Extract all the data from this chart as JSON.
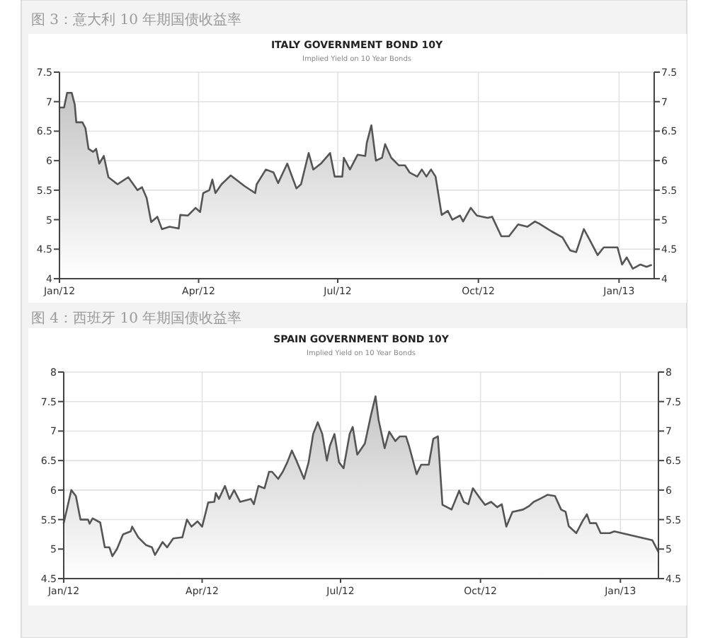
{
  "chart_data": [
    {
      "type": "area",
      "title": "ITALY GOVERNMENT BOND 10Y",
      "subtitle": "Implied Yield on 10 Year Bonds",
      "annotations": [
        "图 3：意大利 10 年期国债收益率"
      ],
      "grid": true,
      "marker": "none",
      "line_style": "solid",
      "xlim": [
        "2012-01-01",
        "2013-01-24"
      ],
      "xticks": [
        {
          "value": "2012-01-01",
          "label": "Jan/12"
        },
        {
          "value": "2012-04-01",
          "label": "Apr/12"
        },
        {
          "value": "2012-07-01",
          "label": "Jul/12"
        },
        {
          "value": "2012-10-01",
          "label": "Oct/12"
        },
        {
          "value": "2013-01-01",
          "label": "Jan/13"
        }
      ],
      "ylim": [
        4,
        7.5
      ],
      "yticks": [
        4,
        4.5,
        5,
        5.5,
        6,
        6.5,
        7,
        7.5
      ],
      "y2lim": [
        4,
        7.5
      ],
      "y2ticks": [
        4,
        4.5,
        5,
        5.5,
        6,
        6.5,
        7,
        7.5
      ],
      "series": [
        {
          "color": "#555555",
          "x": [
            "2012-01-01",
            "2012-01-04",
            "2012-01-06",
            "2012-01-09",
            "2012-01-11",
            "2012-01-12",
            "2012-01-16",
            "2012-01-18",
            "2012-01-20",
            "2012-01-23",
            "2012-01-25",
            "2012-01-27",
            "2012-01-30",
            "2012-02-02",
            "2012-02-08",
            "2012-02-15",
            "2012-02-21",
            "2012-02-24",
            "2012-02-27",
            "2012-03-01",
            "2012-03-05",
            "2012-03-08",
            "2012-03-13",
            "2012-03-19",
            "2012-03-20",
            "2012-03-25",
            "2012-03-30",
            "2012-04-02",
            "2012-04-04",
            "2012-04-08",
            "2012-04-10",
            "2012-04-12",
            "2012-04-16",
            "2012-04-22",
            "2012-05-01",
            "2012-05-08",
            "2012-05-09",
            "2012-05-15",
            "2012-05-20",
            "2012-05-23",
            "2012-05-29",
            "2012-06-04",
            "2012-06-07",
            "2012-06-12",
            "2012-06-15",
            "2012-06-20",
            "2012-06-26",
            "2012-06-29",
            "2012-07-04",
            "2012-07-05",
            "2012-07-09",
            "2012-07-14",
            "2012-07-19",
            "2012-07-20",
            "2012-07-23",
            "2012-07-26",
            "2012-07-30",
            "2012-08-01",
            "2012-08-05",
            "2012-08-10",
            "2012-08-14",
            "2012-08-17",
            "2012-08-22",
            "2012-08-25",
            "2012-08-28",
            "2012-08-31",
            "2012-09-03",
            "2012-09-07",
            "2012-09-11",
            "2012-09-14",
            "2012-09-19",
            "2012-09-21",
            "2012-09-26",
            "2012-09-30",
            "2012-10-07",
            "2012-10-10",
            "2012-10-16",
            "2012-10-21",
            "2012-10-27",
            "2012-11-02",
            "2012-11-07",
            "2012-11-10",
            "2012-11-18",
            "2012-11-25",
            "2012-11-30",
            "2012-12-04",
            "2012-12-09",
            "2012-12-13",
            "2012-12-18",
            "2012-12-22",
            "2012-12-31",
            "2013-01-03",
            "2013-01-06",
            "2013-01-10",
            "2013-01-15",
            "2013-01-19",
            "2013-01-22"
          ],
          "values": [
            6.9,
            6.9,
            7.15,
            7.15,
            6.95,
            6.65,
            6.65,
            6.55,
            6.2,
            6.15,
            6.2,
            5.95,
            6.08,
            5.72,
            5.6,
            5.72,
            5.5,
            5.55,
            5.37,
            4.96,
            5.05,
            4.84,
            4.88,
            4.85,
            5.08,
            5.07,
            5.2,
            5.13,
            5.45,
            5.5,
            5.68,
            5.45,
            5.6,
            5.75,
            5.57,
            5.45,
            5.6,
            5.85,
            5.8,
            5.62,
            5.95,
            5.53,
            5.6,
            6.13,
            5.85,
            5.95,
            6.13,
            5.73,
            5.73,
            6.05,
            5.85,
            6.1,
            6.08,
            6.3,
            6.6,
            6.0,
            6.05,
            6.28,
            6.05,
            5.92,
            5.92,
            5.8,
            5.73,
            5.85,
            5.73,
            5.85,
            5.73,
            5.08,
            5.15,
            5.0,
            5.07,
            4.97,
            5.2,
            5.07,
            5.03,
            5.05,
            4.72,
            4.72,
            4.92,
            4.88,
            4.97,
            4.93,
            4.8,
            4.7,
            4.48,
            4.45,
            4.84,
            4.65,
            4.4,
            4.53,
            4.53,
            4.24,
            4.36,
            4.17,
            4.24,
            4.2,
            4.23
          ]
        }
      ]
    },
    {
      "type": "area",
      "title": "SPAIN GOVERNMENT BOND 10Y",
      "subtitle": "Implied Yield on 10 Year Bonds",
      "annotations": [
        "图 4：西班牙 10 年期国债收益率"
      ],
      "grid": true,
      "marker": "none",
      "line_style": "solid",
      "xlim": [
        "2012-01-01",
        "2013-01-26"
      ],
      "xticks": [
        {
          "value": "2012-01-01",
          "label": "Jan/12"
        },
        {
          "value": "2012-04-01",
          "label": "Apr/12"
        },
        {
          "value": "2012-07-01",
          "label": "Jul/12"
        },
        {
          "value": "2012-10-01",
          "label": "Oct/12"
        },
        {
          "value": "2013-01-01",
          "label": "Jan/13"
        }
      ],
      "ylim": [
        4.5,
        8
      ],
      "yticks": [
        4.5,
        5,
        5.5,
        6,
        6.5,
        7,
        7.5,
        8
      ],
      "y2lim": [
        4.5,
        8
      ],
      "y2ticks": [
        4.5,
        5,
        5.5,
        6,
        6.5,
        7,
        7.5,
        8
      ],
      "series": [
        {
          "color": "#555555",
          "x": [
            "2012-01-01",
            "2012-01-06",
            "2012-01-09",
            "2012-01-12",
            "2012-01-17",
            "2012-01-18",
            "2012-01-20",
            "2012-01-25",
            "2012-01-28",
            "2012-01-31",
            "2012-02-02",
            "2012-02-05",
            "2012-02-09",
            "2012-02-14",
            "2012-02-15",
            "2012-02-19",
            "2012-02-24",
            "2012-02-28",
            "2012-03-01",
            "2012-03-06",
            "2012-03-09",
            "2012-03-13",
            "2012-03-19",
            "2012-03-22",
            "2012-03-25",
            "2012-03-29",
            "2012-04-01",
            "2012-04-05",
            "2012-04-09",
            "2012-04-10",
            "2012-04-12",
            "2012-04-16",
            "2012-04-19",
            "2012-04-22",
            "2012-04-26",
            "2012-05-03",
            "2012-05-05",
            "2012-05-08",
            "2012-05-12",
            "2012-05-15",
            "2012-05-17",
            "2012-05-21",
            "2012-05-24",
            "2012-05-27",
            "2012-05-30",
            "2012-06-02",
            "2012-06-07",
            "2012-06-10",
            "2012-06-13",
            "2012-06-16",
            "2012-06-19",
            "2012-06-22",
            "2012-06-24",
            "2012-06-27",
            "2012-06-30",
            "2012-07-03",
            "2012-07-07",
            "2012-07-09",
            "2012-07-12",
            "2012-07-17",
            "2012-07-21",
            "2012-07-24",
            "2012-07-26",
            "2012-07-30",
            "2012-08-02",
            "2012-08-06",
            "2012-08-09",
            "2012-08-13",
            "2012-08-15",
            "2012-08-20",
            "2012-08-23",
            "2012-08-28",
            "2012-08-31",
            "2012-09-03",
            "2012-09-06",
            "2012-09-12",
            "2012-09-17",
            "2012-09-20",
            "2012-09-23",
            "2012-09-26",
            "2012-10-01",
            "2012-10-04",
            "2012-10-08",
            "2012-10-12",
            "2012-10-15",
            "2012-10-18",
            "2012-10-22",
            "2012-10-29",
            "2012-11-02",
            "2012-11-05",
            "2012-11-09",
            "2012-11-14",
            "2012-11-19",
            "2012-11-23",
            "2012-11-26",
            "2012-11-28",
            "2012-12-03",
            "2012-12-07",
            "2012-12-10",
            "2012-12-12",
            "2012-12-16",
            "2012-12-19",
            "2012-12-25",
            "2012-12-28",
            "2013-01-22",
            "2013-01-26"
          ],
          "values": [
            5.44,
            6.0,
            5.9,
            5.5,
            5.5,
            5.43,
            5.52,
            5.45,
            5.03,
            5.03,
            4.88,
            5.0,
            5.25,
            5.3,
            5.38,
            5.2,
            5.07,
            5.03,
            4.9,
            5.12,
            5.03,
            5.18,
            5.2,
            5.5,
            5.38,
            5.47,
            5.38,
            5.79,
            5.8,
            5.95,
            5.85,
            6.07,
            5.85,
            6.0,
            5.8,
            5.85,
            5.76,
            6.07,
            6.03,
            6.31,
            6.31,
            6.19,
            6.31,
            6.47,
            6.67,
            6.5,
            6.19,
            6.47,
            6.95,
            7.15,
            6.95,
            6.5,
            6.75,
            6.95,
            6.47,
            6.37,
            6.95,
            7.07,
            6.6,
            6.79,
            7.27,
            7.59,
            7.19,
            6.71,
            6.99,
            6.83,
            6.91,
            6.91,
            6.75,
            6.27,
            6.43,
            6.43,
            6.87,
            6.91,
            5.75,
            5.67,
            5.99,
            5.8,
            5.76,
            6.03,
            5.85,
            5.75,
            5.8,
            5.71,
            5.76,
            5.38,
            5.63,
            5.67,
            5.73,
            5.8,
            5.85,
            5.92,
            5.9,
            5.67,
            5.63,
            5.39,
            5.27,
            5.47,
            5.59,
            5.44,
            5.44,
            5.27,
            5.27,
            5.3,
            5.15,
            4.95
          ]
        }
      ]
    }
  ]
}
